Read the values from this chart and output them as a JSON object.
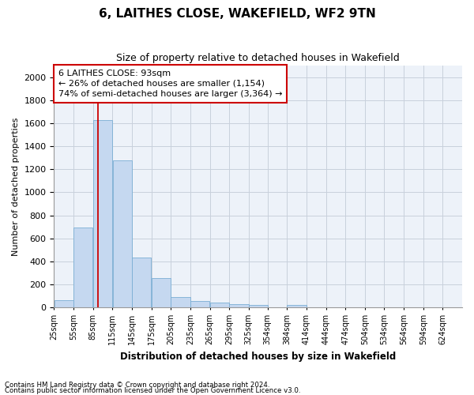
{
  "title": "6, LAITHES CLOSE, WAKEFIELD, WF2 9TN",
  "subtitle": "Size of property relative to detached houses in Wakefield",
  "xlabel": "Distribution of detached houses by size in Wakefield",
  "ylabel": "Number of detached properties",
  "bar_color": "#c5d8f0",
  "bar_edge_color": "#7aaed4",
  "grid_color": "#c8d0dc",
  "annotation_box_color": "#cc0000",
  "vline_color": "#cc0000",
  "footnote1": "Contains HM Land Registry data © Crown copyright and database right 2024.",
  "footnote2": "Contains public sector information licensed under the Open Government Licence v3.0.",
  "annotation_line1": "6 LAITHES CLOSE: 93sqm",
  "annotation_line2": "← 26% of detached houses are smaller (1,154)",
  "annotation_line3": "74% of semi-detached houses are larger (3,364) →",
  "property_size": 93,
  "bin_labels": [
    "25sqm",
    "55sqm",
    "85sqm",
    "115sqm",
    "145sqm",
    "175sqm",
    "205sqm",
    "235sqm",
    "265sqm",
    "295sqm",
    "325sqm",
    "354sqm",
    "384sqm",
    "414sqm",
    "444sqm",
    "474sqm",
    "504sqm",
    "534sqm",
    "564sqm",
    "594sqm",
    "624sqm"
  ],
  "bin_lefts": [
    25,
    55,
    85,
    115,
    145,
    175,
    205,
    235,
    265,
    295,
    325,
    354,
    384,
    414,
    444,
    474,
    504,
    534,
    564,
    594
  ],
  "bin_width": 30,
  "bar_heights": [
    65,
    695,
    1630,
    1275,
    435,
    255,
    90,
    55,
    40,
    30,
    25,
    0,
    20,
    0,
    0,
    0,
    0,
    0,
    0,
    0
  ],
  "ylim": [
    0,
    2100
  ],
  "xlim": [
    25,
    654
  ],
  "yticks": [
    0,
    200,
    400,
    600,
    800,
    1000,
    1200,
    1400,
    1600,
    1800,
    2000
  ],
  "background_color": "#edf2f9"
}
